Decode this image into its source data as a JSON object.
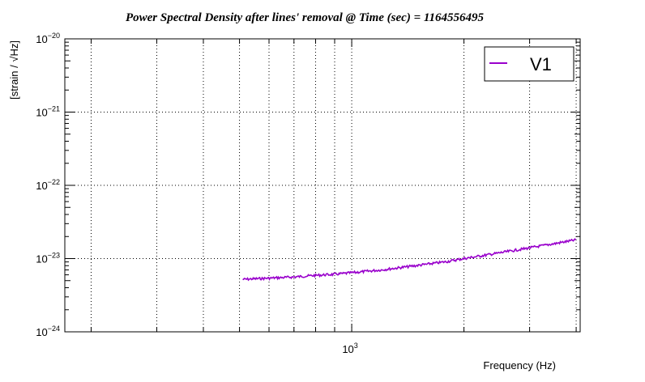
{
  "chart_data": {
    "type": "line",
    "title": "Power Spectral Density after lines' removal @ Time (sec) = 1164556495",
    "xlabel": "Frequency (Hz)",
    "ylabel": "[strain / √Hz]",
    "xscale": "log",
    "yscale": "log",
    "xlim": [
      170,
      4100
    ],
    "ylim": [
      1e-24,
      1e-20
    ],
    "grid": true,
    "legend_position": "top-right",
    "x_tick_labels": [
      {
        "value": 1000,
        "base": "10",
        "exp": "3"
      }
    ],
    "y_tick_labels": [
      {
        "value": 1e-24,
        "base": "10",
        "exp": "−24"
      },
      {
        "value": 1e-23,
        "base": "10",
        "exp": "−23"
      },
      {
        "value": 1e-22,
        "base": "10",
        "exp": "−22"
      },
      {
        "value": 1e-21,
        "base": "10",
        "exp": "−21"
      },
      {
        "value": 1e-20,
        "base": "10",
        "exp": "−20"
      }
    ],
    "series": [
      {
        "name": "V1",
        "color": "#9900cc",
        "x": [
          510,
          600,
          700,
          800,
          900,
          1000,
          1200,
          1400,
          1600,
          1800,
          2000,
          2300,
          2600,
          3000,
          3500,
          4000
        ],
        "y": [
          5.2e-24,
          5.4e-24,
          5.6e-24,
          5.9e-24,
          6.1e-24,
          6.4e-24,
          7e-24,
          7.7e-24,
          8.4e-24,
          9.1e-24,
          1e-23,
          1.12e-23,
          1.24e-23,
          1.4e-23,
          1.6e-23,
          1.8e-23
        ]
      }
    ]
  }
}
